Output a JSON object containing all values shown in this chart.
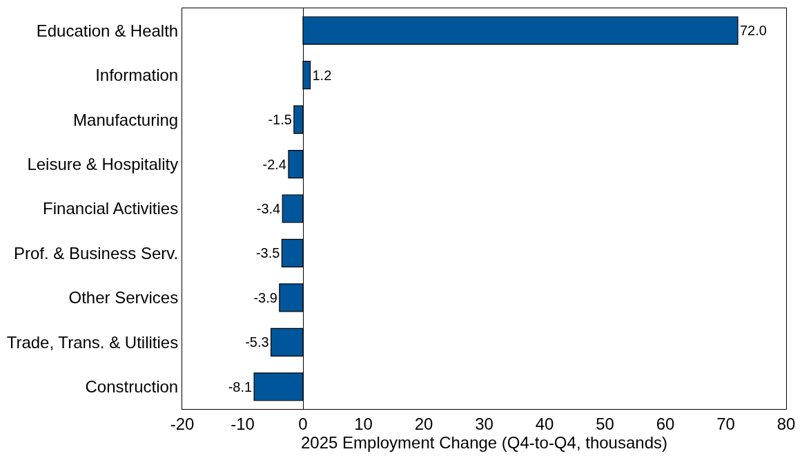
{
  "chart_data": {
    "type": "bar",
    "orientation": "horizontal",
    "xlabel": "2025 Employment Change (Q4-to-Q4, thousands)",
    "categories": [
      "Education & Health",
      "Information",
      "Manufacturing",
      "Leisure & Hospitality",
      "Financial Activities",
      "Prof. & Business Serv.",
      "Other Services",
      "Trade, Trans. & Utilities",
      "Construction"
    ],
    "values": [
      72.0,
      1.2,
      -1.5,
      -2.4,
      -3.4,
      -3.5,
      -3.9,
      -5.3,
      -8.1
    ],
    "value_labels": [
      "72.0",
      "1.2",
      "-1.5",
      "-2.4",
      "-3.4",
      "-3.5",
      "-3.9",
      "-5.3",
      "-8.1"
    ],
    "color": "#00569a",
    "xlim": [
      -20,
      80
    ],
    "xticks": [
      -20,
      -10,
      0,
      10,
      20,
      30,
      40,
      50,
      60,
      70,
      80
    ],
    "legend": false
  }
}
